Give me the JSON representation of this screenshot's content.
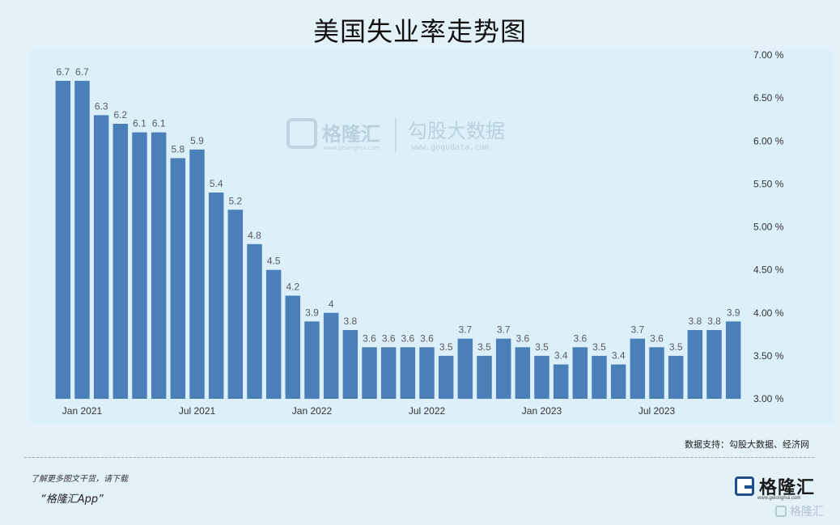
{
  "title": "美国失业率走势图",
  "watermark": {
    "brand": "格隆汇",
    "brand_domain": "www.gelonghui.com",
    "partner": "勾股大数据",
    "partner_domain": "www.gogudata.com"
  },
  "source": "数据支持：勾股大数据、经济网",
  "footer": {
    "line1": "了解更多图文干货，请下载",
    "line2": "“格隆汇App”"
  },
  "logo": {
    "name": "格隆汇",
    "domain": "www.gelonghui.com",
    "watermark_text": "格隆汇"
  },
  "colors": {
    "bar": "#4a7fb8",
    "plot_bg": "#dcf0fa",
    "page_bg": "#e3f1f8",
    "label": "#5a5a5a"
  },
  "chart_data": {
    "type": "bar",
    "categories": [
      "2020-12",
      "2021-01",
      "2021-02",
      "2021-03",
      "2021-04",
      "2021-05",
      "2021-06",
      "2021-07",
      "2021-08",
      "2021-09",
      "2021-10",
      "2021-11",
      "2021-12",
      "2022-01",
      "2022-02",
      "2022-03",
      "2022-04",
      "2022-05",
      "2022-06",
      "2022-07",
      "2022-08",
      "2022-09",
      "2022-10",
      "2022-11",
      "2022-12",
      "2023-01",
      "2023-02",
      "2023-03",
      "2023-04",
      "2023-05",
      "2023-06",
      "2023-07",
      "2023-08",
      "2023-09",
      "2023-10",
      "2023-11"
    ],
    "values": [
      6.7,
      6.7,
      6.3,
      6.2,
      6.1,
      6.1,
      5.8,
      5.9,
      5.4,
      5.2,
      4.8,
      4.5,
      4.2,
      3.9,
      4,
      3.8,
      3.6,
      3.6,
      3.6,
      3.6,
      3.5,
      3.7,
      3.5,
      3.7,
      3.6,
      3.5,
      3.4,
      3.6,
      3.5,
      3.4,
      3.7,
      3.6,
      3.5,
      3.8,
      3.8,
      3.9
    ],
    "data_labels": [
      "6.7",
      "6.7",
      "6.3",
      "6.2",
      "6.1",
      "6.1",
      "5.8",
      "5.9",
      "5.4",
      "5.2",
      "4.8",
      "4.5",
      "4.2",
      "3.9",
      "4",
      "3.8",
      "3.6",
      "3.6",
      "3.6",
      "3.6",
      "3.5",
      "3.7",
      "3.5",
      "3.7",
      "3.6",
      "3.5",
      "3.4",
      "3.6",
      "3.5",
      "3.4",
      "3.7",
      "3.6",
      "3.5",
      "3.8",
      "3.8",
      "3.9"
    ],
    "x_tick_labels": [
      {
        "index": 1,
        "label": "Jan 2021"
      },
      {
        "index": 7,
        "label": "Jul 2021"
      },
      {
        "index": 13,
        "label": "Jan 2022"
      },
      {
        "index": 19,
        "label": "Jul 2022"
      },
      {
        "index": 25,
        "label": "Jan 2023"
      },
      {
        "index": 31,
        "label": "Jul 2023"
      }
    ],
    "y_ticks": [
      3.0,
      3.5,
      4.0,
      4.5,
      5.0,
      5.5,
      6.0,
      6.5,
      7.0
    ],
    "y_tick_labels": [
      "3.00 %",
      "3.50 %",
      "4.00 %",
      "4.50 %",
      "5.00 %",
      "5.50 %",
      "6.00 %",
      "6.50 %",
      "7.00 %"
    ],
    "ylim": [
      3.0,
      7.0
    ],
    "y_axis_side": "right",
    "grid": false,
    "legend": "none"
  }
}
